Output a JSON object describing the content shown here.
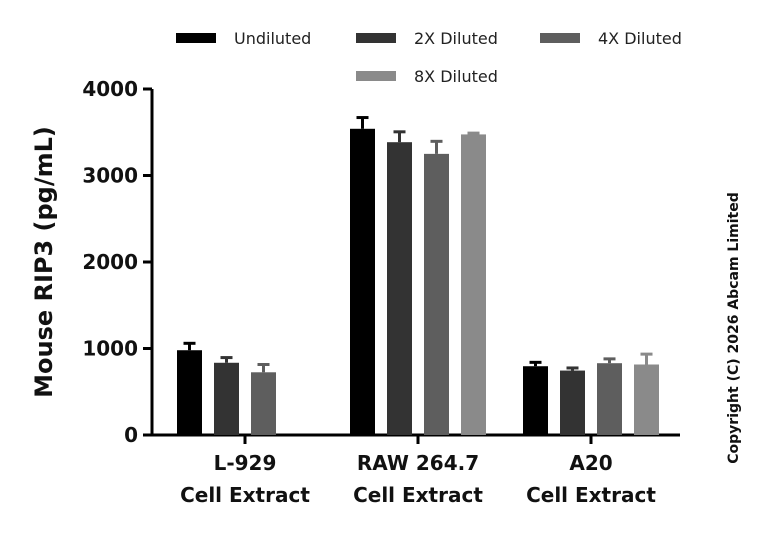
{
  "chart_data": {
    "type": "bar",
    "ylabel": "Mouse RIP3 (pg/mL)",
    "ylim": [
      0,
      4000
    ],
    "yticks": [
      "0",
      "1000",
      "2000",
      "3000",
      "4000"
    ],
    "legend_position": "top",
    "categories": [
      {
        "line1": "L-929",
        "line2": "Cell Extract"
      },
      {
        "line1": "RAW 264.7",
        "line2": "Cell Extract"
      },
      {
        "line1": "A20",
        "line2": "Cell Extract"
      }
    ],
    "series": [
      {
        "name": "Undiluted",
        "color": "#000000",
        "values": [
          980,
          3540,
          795
        ],
        "errors": [
          80,
          130,
          45
        ]
      },
      {
        "name": "2X Diluted",
        "color": "#333333",
        "values": [
          835,
          3385,
          745
        ],
        "errors": [
          60,
          120,
          30
        ]
      },
      {
        "name": "4X Diluted",
        "color": "#5e5e5e",
        "values": [
          725,
          3250,
          830
        ],
        "errors": [
          90,
          145,
          50
        ]
      },
      {
        "name": "8X Diluted",
        "color": "#8a8a8a",
        "values": [
          null,
          3475,
          815
        ],
        "errors": [
          null,
          15,
          120
        ]
      }
    ],
    "copyright": "Copyright (C) 2026 Abcam Limited"
  }
}
